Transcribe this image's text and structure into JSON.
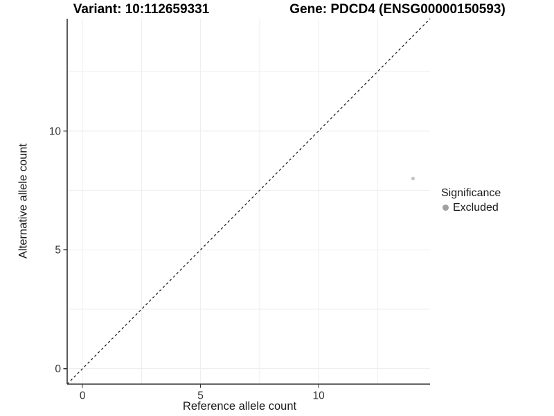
{
  "chart_data": {
    "type": "scatter",
    "title_left": "Variant: 10:112659331",
    "title_right": "Gene: PDCD4 (ENSG00000150593)",
    "xlabel": "Reference allele count",
    "ylabel": "Alternative allele count",
    "xlim": [
      -0.65,
      14.72
    ],
    "ylim": [
      -0.65,
      14.72
    ],
    "x_ticks": [
      0,
      5,
      10
    ],
    "y_ticks": [
      0,
      5,
      10
    ],
    "x_minor_grid": [
      2.5,
      7.5,
      12.5
    ],
    "y_minor_grid": [
      2.5,
      7.5,
      12.5
    ],
    "grid_visible": true,
    "grid_color": "#eeeeee",
    "axis_line_color": "#333333",
    "identity_line": {
      "style": "dashed",
      "color": "#111111",
      "from": {
        "x": -0.65,
        "y": -0.65
      },
      "to": {
        "x": 14.72,
        "y": 14.72
      }
    },
    "series": [
      {
        "name": "Excluded",
        "point_color": "#c6c6c6",
        "points": [
          {
            "x": 14,
            "y": 8
          }
        ]
      }
    ],
    "legend": {
      "position": "right",
      "title": "Significance",
      "items": [
        {
          "label": "Excluded",
          "color": "#a0a0a0"
        }
      ]
    }
  }
}
